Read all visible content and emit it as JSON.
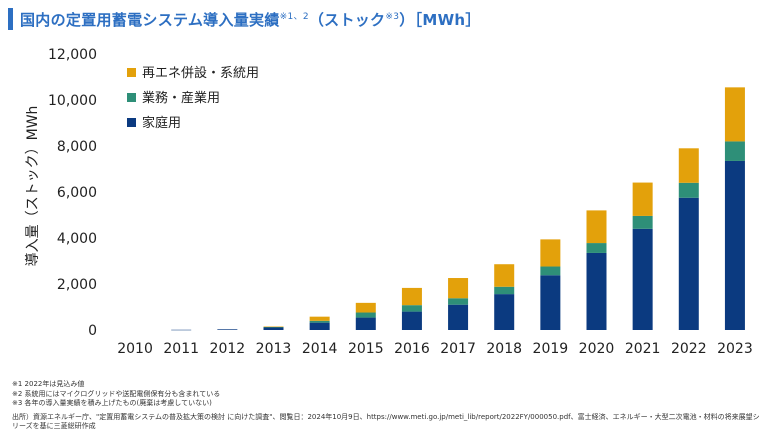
{
  "header": {
    "title_main": "国内の定置用蓄電システム導入量実績",
    "title_sup1": "※1、2",
    "title_mid": "（ストック",
    "title_sup2": "※3",
    "title_end": "）［MWh］"
  },
  "colors": {
    "household": "#0b3a80",
    "business": "#2e8f78",
    "grid": "#e3a10b",
    "title_accent": "#2d6fc2"
  },
  "chart_data": {
    "type": "bar",
    "stacked": true,
    "categories": [
      "2010",
      "2011",
      "2012",
      "2013",
      "2014",
      "2015",
      "2016",
      "2017",
      "2018",
      "2019",
      "2020",
      "2021",
      "2022",
      "2023"
    ],
    "series": [
      {
        "name": "家庭用",
        "color": "#0b3a80",
        "values": [
          0,
          10,
          30,
          110,
          320,
          540,
          800,
          1100,
          1560,
          2380,
          3350,
          4400,
          5750,
          7350
        ]
      },
      {
        "name": "業務・産業用",
        "color": "#2e8f78",
        "values": [
          0,
          0,
          0,
          20,
          80,
          220,
          280,
          280,
          320,
          380,
          430,
          560,
          650,
          850
        ]
      },
      {
        "name": "再エネ併設・系統用",
        "color": "#e3a10b",
        "values": [
          0,
          0,
          0,
          20,
          180,
          420,
          750,
          880,
          980,
          1180,
          1420,
          1450,
          1500,
          2350
        ]
      }
    ],
    "ylabel": "導入量（ストック）MWh",
    "ylim": [
      0,
      12000
    ],
    "yticks": [
      0,
      2000,
      4000,
      6000,
      8000,
      10000,
      12000
    ],
    "ytick_labels": [
      "0",
      "2,000",
      "4,000",
      "6,000",
      "8,000",
      "10,000",
      "12,000"
    ],
    "grid": false,
    "legend_position": "top-left"
  },
  "notes": [
    "※1  2022年は見込み値",
    "※2  系統用にはマイクログリッドや送配電側保有分も含まれている",
    "※3  各年の導入量実績を積み上げたもの(廃棄は考慮していない)"
  ],
  "source": "出所）資源エネルギー庁、\"定置用蓄電システムの普及拡大策の検討 に向けた調査\"、閲覧日：2024年10月9日、https://www.meti.go.jp/meti_lib/report/2022FY/000050.pdf、富士経済、エネルギー・大型二次電池・材料の将来展望シリーズを基に三菱総研作成"
}
